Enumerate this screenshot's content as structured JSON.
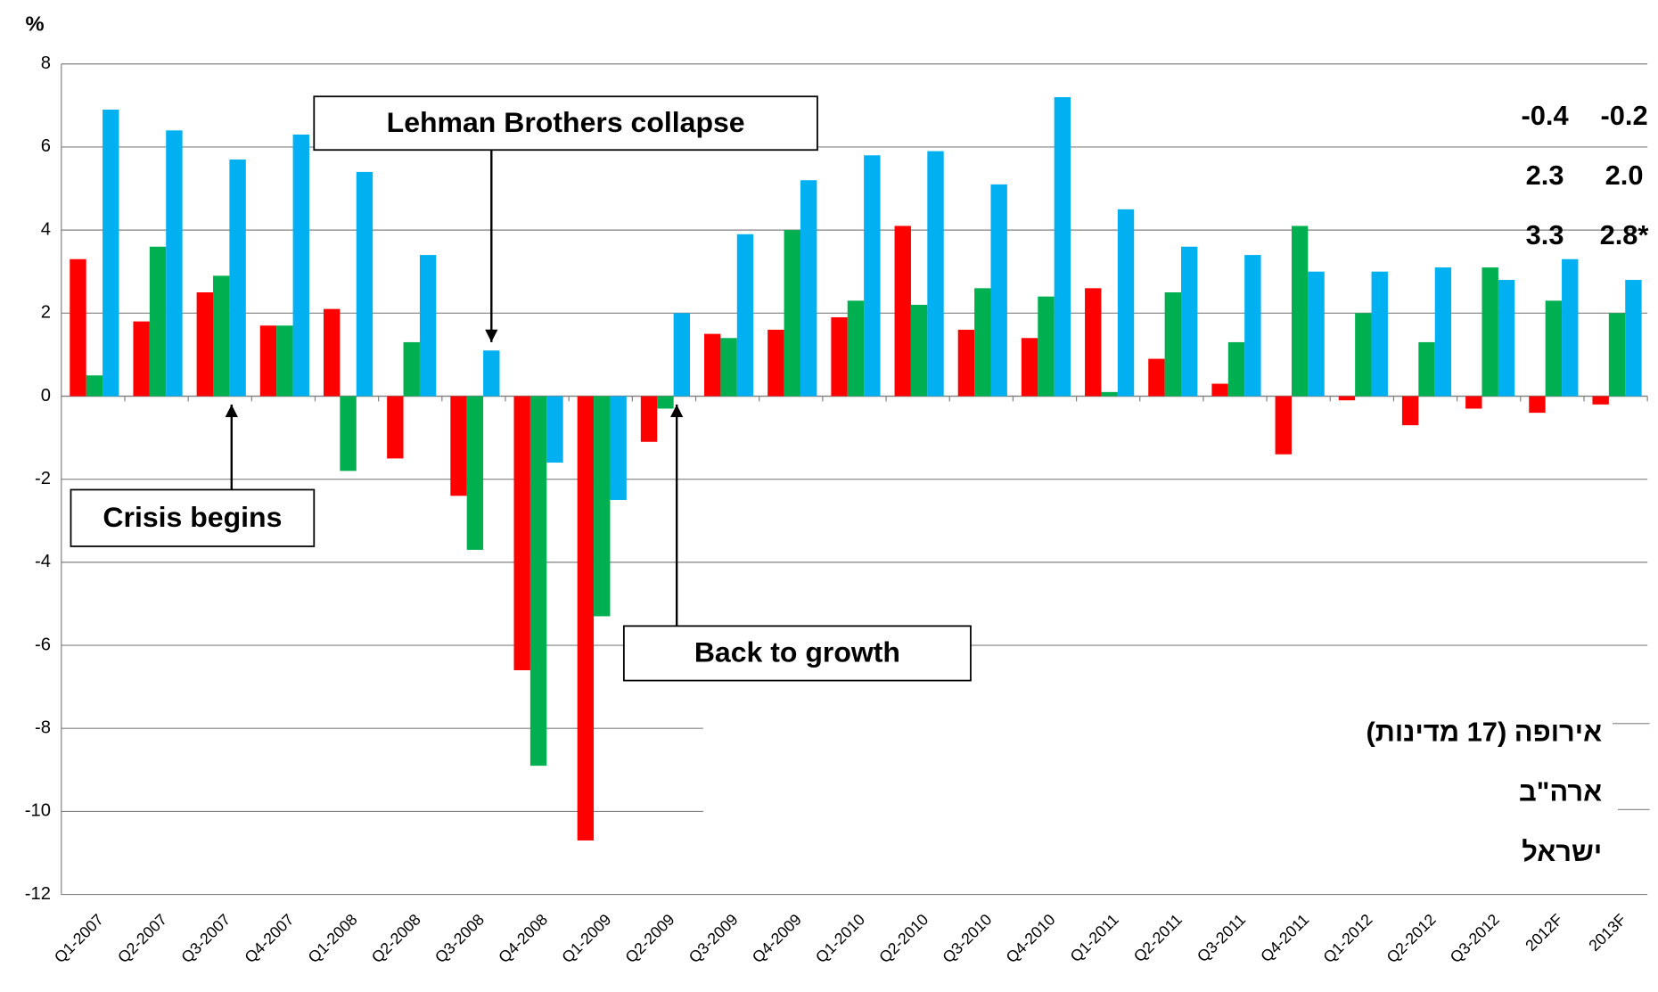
{
  "chart_data": {
    "type": "bar",
    "y_axis_label": "%",
    "categories": [
      "Q1-2007",
      "Q2-2007",
      "Q3-2007",
      "Q4-2007",
      "Q1-2008",
      "Q2-2008",
      "Q3-2008",
      "Q4-2008",
      "Q1-2009",
      "Q2-2009",
      "Q3-2009",
      "Q4-2009",
      "Q1-2010",
      "Q2-2010",
      "Q3-2010",
      "Q4-2010",
      "Q1-2011",
      "Q2-2011",
      "Q3-2011",
      "Q4-2011",
      "Q1-2012",
      "Q2-2012",
      "Q3-2012",
      "2012F",
      "2013F"
    ],
    "series": [
      {
        "name": "אירופה (17 מדינות)",
        "color": "#ff0000",
        "label_color": "#ff0000",
        "values": [
          3.3,
          1.8,
          2.5,
          1.7,
          2.1,
          -1.5,
          -2.4,
          -6.6,
          -10.7,
          -1.1,
          1.5,
          1.6,
          1.9,
          4.1,
          1.6,
          1.4,
          2.6,
          0.9,
          0.3,
          -1.4,
          -0.1,
          -0.7,
          -0.3,
          -0.4,
          -0.2
        ],
        "value_labels": [
          null,
          null,
          null,
          null,
          null,
          null,
          null,
          null,
          null,
          null,
          null,
          null,
          null,
          null,
          null,
          null,
          null,
          null,
          null,
          null,
          null,
          null,
          null,
          "-0.4",
          "-0.2"
        ]
      },
      {
        "name": "ארה\"ב",
        "color": "#00b050",
        "label_color": "#00b050",
        "values": [
          0.5,
          3.6,
          2.9,
          1.7,
          -1.8,
          1.3,
          -3.7,
          -8.9,
          -5.3,
          -0.3,
          1.4,
          4.0,
          2.3,
          2.2,
          2.6,
          2.4,
          0.1,
          2.5,
          1.3,
          4.1,
          2.0,
          1.3,
          3.1,
          2.3,
          2.0
        ],
        "value_labels": [
          null,
          null,
          null,
          null,
          null,
          null,
          null,
          null,
          null,
          null,
          null,
          null,
          null,
          null,
          null,
          null,
          null,
          null,
          null,
          null,
          null,
          null,
          null,
          "2.3",
          "2.0"
        ]
      },
      {
        "name": "ישראל",
        "color": "#00b0f0",
        "label_color": "#0000ff",
        "values": [
          6.9,
          6.4,
          5.7,
          6.3,
          5.4,
          3.4,
          1.1,
          -1.6,
          -2.5,
          2.0,
          3.9,
          5.2,
          5.8,
          5.9,
          5.1,
          7.2,
          4.5,
          3.6,
          3.4,
          3.0,
          3.0,
          3.1,
          2.8,
          3.3,
          2.8
        ],
        "value_labels": [
          null,
          null,
          null,
          null,
          null,
          null,
          null,
          null,
          null,
          null,
          null,
          null,
          null,
          null,
          null,
          null,
          null,
          null,
          null,
          null,
          null,
          null,
          null,
          "3.3",
          "2.8*"
        ]
      }
    ],
    "ylim": [
      -12,
      8
    ],
    "yticks": [
      -12,
      -10,
      -8,
      -6,
      -4,
      -2,
      0,
      2,
      4,
      6,
      8
    ],
    "grid": true,
    "annotations": [
      {
        "text": "Lehman Brothers collapse",
        "category": "Q3-2008"
      },
      {
        "text": "Crisis begins",
        "category": "Q3-2007"
      },
      {
        "text": "Back to growth",
        "category": "Q2-2009"
      }
    ]
  }
}
